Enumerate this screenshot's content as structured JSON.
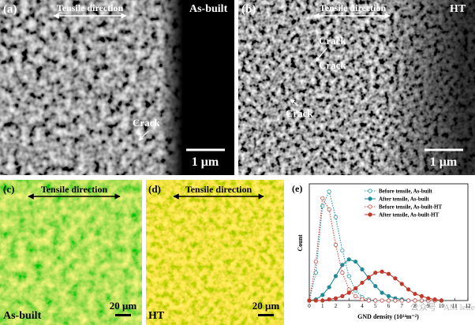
{
  "panels": [
    {
      "label": "(a)",
      "direction": "Tensile direction",
      "condition": "As-built",
      "cracks": [
        "Crack"
      ],
      "scale": "1 μm"
    },
    {
      "label": "(b)",
      "direction": "Tensile direction",
      "condition": "HT",
      "cracks": [
        "Crack",
        "Crack",
        "Crack"
      ],
      "scale": "1 μm"
    },
    {
      "label": "(c)",
      "direction": "Tensile direction",
      "condition": "As-built",
      "scale": "20 μm"
    },
    {
      "label": "(d)",
      "direction": "Tensile direction",
      "condition": "HT",
      "scale": "20 μm"
    }
  ],
  "watermark": "公众号 · AM letters",
  "chart_data": {
    "type": "line",
    "label": "(e)",
    "x_label": "GND density (10¹⁴m⁻²)",
    "y_label": "Count",
    "x": [
      0,
      0.5,
      1,
      1.5,
      2,
      2.5,
      3,
      3.5,
      4,
      4.5,
      5,
      5.5,
      6,
      6.5,
      7,
      7.5,
      8,
      8.5,
      9,
      9.5,
      10
    ],
    "series": [
      {
        "name": "Before tensile, As-built",
        "color": "#2a9aa6",
        "marker": "open",
        "line_style": "dotted",
        "values": [
          0,
          0.25,
          0.85,
          0.98,
          0.75,
          0.45,
          0.22,
          0.09,
          0.03,
          0.01,
          0,
          0,
          0,
          0,
          0,
          0,
          0,
          0,
          0,
          0,
          0
        ]
      },
      {
        "name": "After tensile, As-built",
        "color": "#1e8a96",
        "marker": "filled",
        "line_style": "solid",
        "values": [
          0,
          0.01,
          0.05,
          0.12,
          0.22,
          0.32,
          0.37,
          0.35,
          0.28,
          0.2,
          0.13,
          0.07,
          0.04,
          0.02,
          0.01,
          0,
          0,
          0,
          0,
          0,
          0
        ]
      },
      {
        "name": "Before tensile, As-built-HT",
        "color": "#c9504a",
        "marker": "open",
        "line_style": "dotted",
        "values": [
          0,
          0.35,
          0.92,
          0.82,
          0.5,
          0.25,
          0.1,
          0.04,
          0.01,
          0,
          0,
          0,
          0,
          0,
          0,
          0,
          0,
          0,
          0,
          0,
          0
        ]
      },
      {
        "name": "After tensile, As-built-HT",
        "color": "#c0392b",
        "marker": "filled",
        "line_style": "solid",
        "values": [
          0,
          0,
          0,
          0.01,
          0.02,
          0.04,
          0.07,
          0.11,
          0.16,
          0.21,
          0.25,
          0.26,
          0.24,
          0.2,
          0.15,
          0.1,
          0.06,
          0.04,
          0.02,
          0.01,
          0
        ]
      }
    ],
    "xlim": [
      0,
      12
    ],
    "xticks": [
      0,
      1,
      2,
      3,
      4,
      5,
      6,
      7,
      8,
      9,
      10,
      11,
      12
    ],
    "ylim": [
      0,
      1.05
    ]
  }
}
